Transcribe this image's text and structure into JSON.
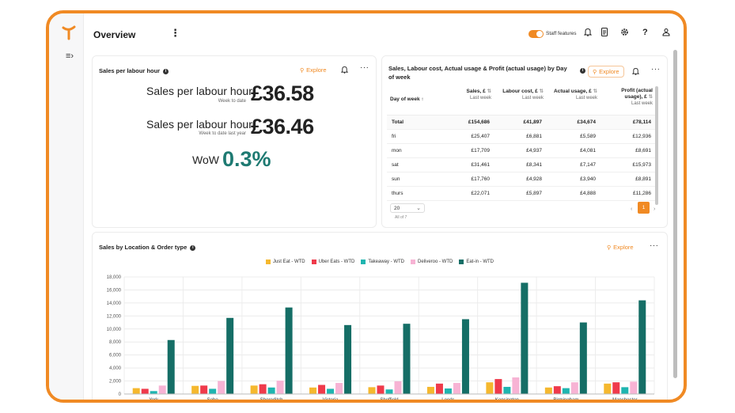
{
  "app": {
    "title": "Overview",
    "staff_features_label": "Staff features",
    "accent": "#f08a24"
  },
  "icons": [
    "logo-icon",
    "sidebar-toggle-icon",
    "kebab-icon",
    "bell-icon",
    "document-icon",
    "gear-icon",
    "help-icon",
    "user-icon"
  ],
  "kpi_card": {
    "title": "Sales per labour hour",
    "explore_label": "Explore",
    "current": {
      "label": "Sales per labour hour",
      "sub": "Week to date",
      "value": "£36.58"
    },
    "last_year": {
      "label": "Sales per labour hour",
      "sub": "Week to date last year",
      "value": "£36.46"
    },
    "wow": {
      "label": "WoW",
      "value": "0.3%"
    }
  },
  "table_card": {
    "title": "Sales, Labour cost, Actual usage & Profit (actual usage) by Day of week",
    "explore_label": "Explore",
    "columns": [
      {
        "label": "Day of week",
        "sub": "",
        "sort": "↑"
      },
      {
        "label": "Sales, £",
        "sub": "Last week",
        "sort": "⇅"
      },
      {
        "label": "Labour cost, £",
        "sub": "Last week",
        "sort": "⇅"
      },
      {
        "label": "Actual usage, £",
        "sub": "Last week",
        "sort": "⇅"
      },
      {
        "label": "Profit (actual usage), £",
        "sub": "Last week",
        "sort": "⇅"
      }
    ],
    "rows": [
      [
        "Total",
        "£154,686",
        "£41,897",
        "£34,674",
        "£78,114"
      ],
      [
        "fri",
        "£25,407",
        "£6,881",
        "£5,589",
        "£12,936"
      ],
      [
        "mon",
        "£17,709",
        "£4,937",
        "£4,081",
        "£8,691"
      ],
      [
        "sat",
        "£31,461",
        "£8,341",
        "£7,147",
        "£15,973"
      ],
      [
        "sun",
        "£17,760",
        "£4,928",
        "£3,940",
        "£8,891"
      ],
      [
        "thurs",
        "£22,071",
        "£5,897",
        "£4,888",
        "£11,286"
      ]
    ],
    "page_size": "20",
    "row_count": "All of 7",
    "prev": "‹",
    "current_page": "1",
    "next": "›"
  },
  "chart_card": {
    "title": "Sales by Location & Order type",
    "explore_label": "Explore"
  },
  "chart_data": {
    "type": "bar",
    "title": "Sales by Location & Order type",
    "categories": [
      "York",
      "Soho",
      "Shoreditch",
      "Victoria",
      "Sheffield",
      "Leeds",
      "Kensington",
      "Birmingham",
      "Manchester"
    ],
    "series": [
      {
        "name": "Just Eat - WTD",
        "color": "#f5b82e",
        "values": [
          900,
          1250,
          1300,
          1000,
          1050,
          1100,
          1800,
          1000,
          1600
        ]
      },
      {
        "name": "Uber Eats - WTD",
        "color": "#ef3a4b",
        "values": [
          800,
          1300,
          1500,
          1400,
          1300,
          1600,
          2300,
          1200,
          1800
        ]
      },
      {
        "name": "Takeaway - WTD",
        "color": "#1fb5b0",
        "values": [
          450,
          800,
          1000,
          800,
          700,
          850,
          1100,
          900,
          1050
        ]
      },
      {
        "name": "Deliveroo - WTD",
        "color": "#f7b3d4",
        "values": [
          1300,
          2000,
          2050,
          1700,
          1950,
          1700,
          2550,
          1800,
          1900
        ]
      },
      {
        "name": "Eat-in - WTD",
        "color": "#156e66",
        "values": [
          8300,
          11700,
          13300,
          10600,
          10800,
          11500,
          17100,
          11000,
          14400
        ]
      }
    ],
    "yticks": [
      "0",
      "2,000",
      "4,000",
      "6,000",
      "8,000",
      "10,000",
      "12,000",
      "14,000",
      "16,000",
      "18,000"
    ],
    "ylim": [
      0,
      18000
    ],
    "xlabel": "",
    "ylabel": "",
    "legend": "top-center",
    "grid": true
  }
}
